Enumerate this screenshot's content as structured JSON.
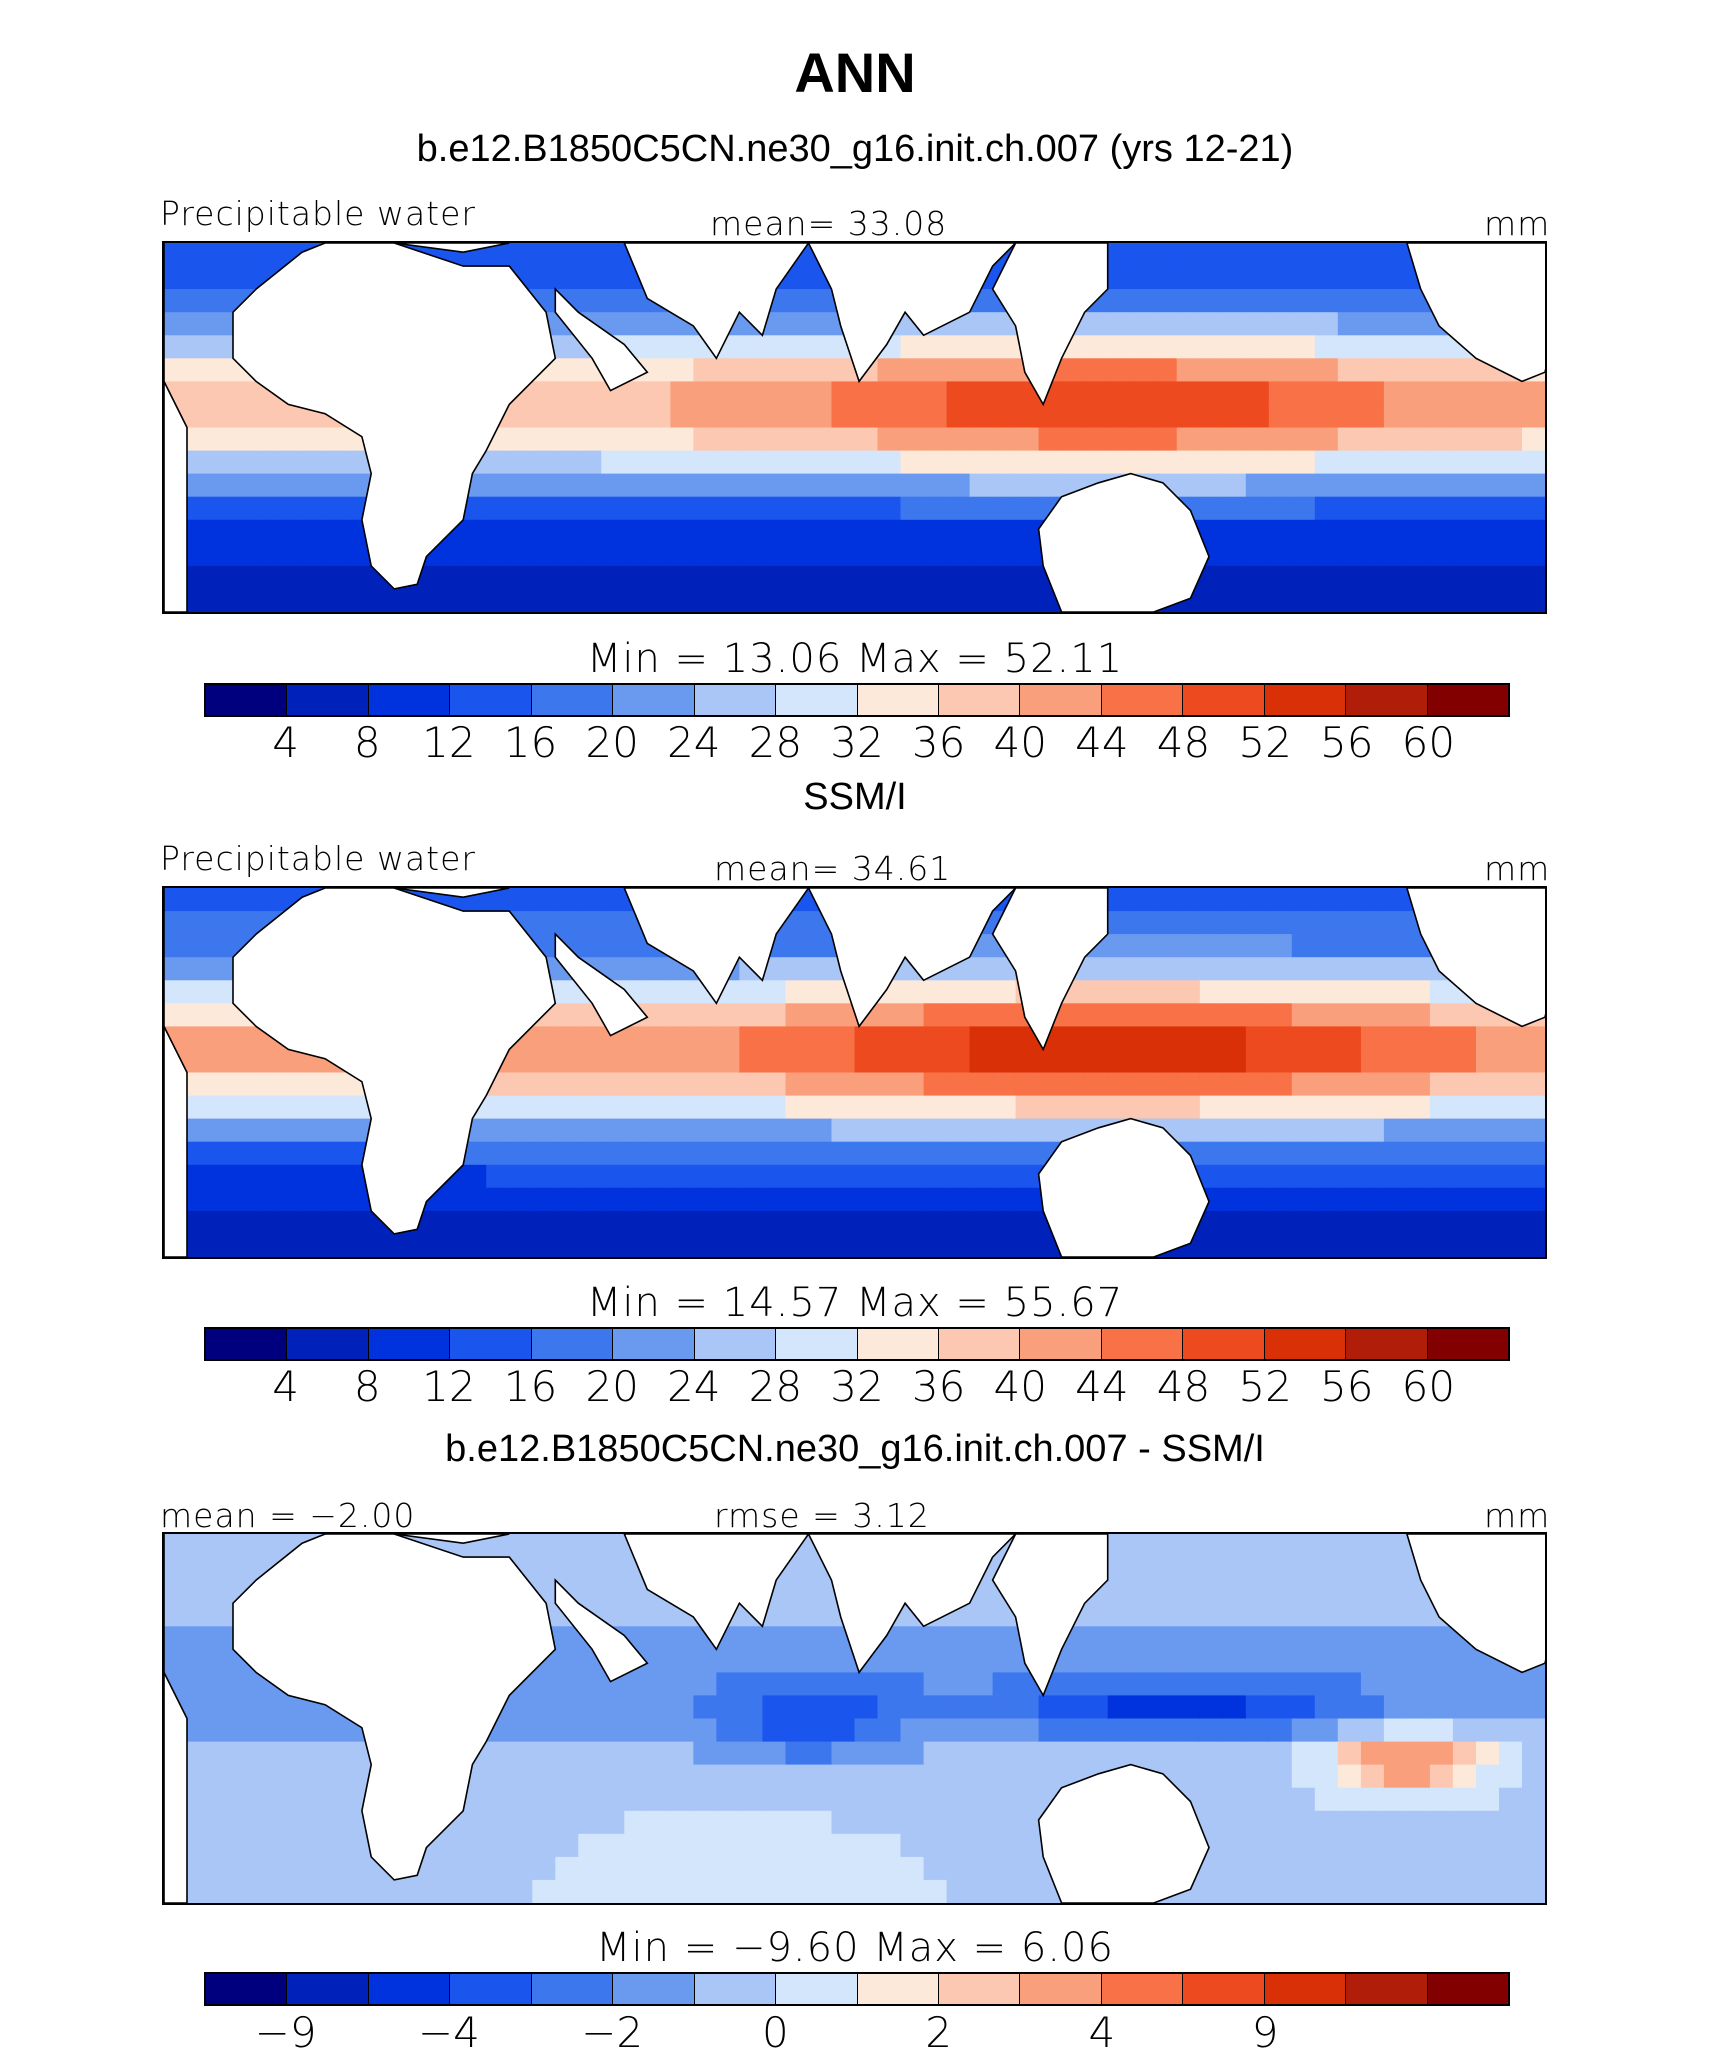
{
  "title": "ANN",
  "colors": [
    "#00007f",
    "#0022bb",
    "#0033dd",
    "#1a55ee",
    "#3d77ee",
    "#6a99f0",
    "#a9c6f6",
    "#d4e6fb",
    "#fde9d9",
    "#fcc8b1",
    "#fa9f7c",
    "#f87147",
    "#ee4a1f",
    "#d93008",
    "#b01e0a",
    "#820000"
  ],
  "panels": [
    {
      "id": "model",
      "subtitle": "b.e12.B1850C5CN.ne30_g16.init.ch.007 (yrs 12-21)",
      "left_label": "Precipitable water",
      "center_label": "mean=   33.08",
      "right_label": "mm",
      "minmax": "Min  =   13.06  Max  =   52.11",
      "ticks": [
        "4",
        "8",
        "12",
        "16",
        "20",
        "24",
        "28",
        "32",
        "36",
        "40",
        "44",
        "48",
        "52",
        "56",
        "60"
      ],
      "field": {
        "kind": "mean",
        "tropic_peak": 52,
        "south_low": 14
      }
    },
    {
      "id": "obs",
      "subtitle": "SSM/I",
      "left_label": "Precipitable water",
      "center_label": "mean=   34.61",
      "right_label": "mm",
      "minmax": "Min  =   14.57  Max  =   55.67",
      "ticks": [
        "4",
        "8",
        "12",
        "16",
        "20",
        "24",
        "28",
        "32",
        "36",
        "40",
        "44",
        "48",
        "52",
        "56",
        "60"
      ],
      "field": {
        "kind": "mean",
        "tropic_peak": 55,
        "south_low": 15
      }
    },
    {
      "id": "diff",
      "subtitle": "b.e12.B1850C5CN.ne30_g16.init.ch.007 - SSM/I",
      "left_label": "mean  =   −2.00",
      "center_label": "rmse  =      3.12",
      "right_label": "mm",
      "minmax": "Min  =   −9.60  Max  =     6.06",
      "ticks": [
        "−9",
        "",
        "−4",
        "",
        "−2",
        "",
        "0",
        "",
        "2",
        "",
        "4",
        "",
        "9",
        "",
        ""
      ],
      "field": {
        "kind": "diff"
      }
    }
  ]
}
